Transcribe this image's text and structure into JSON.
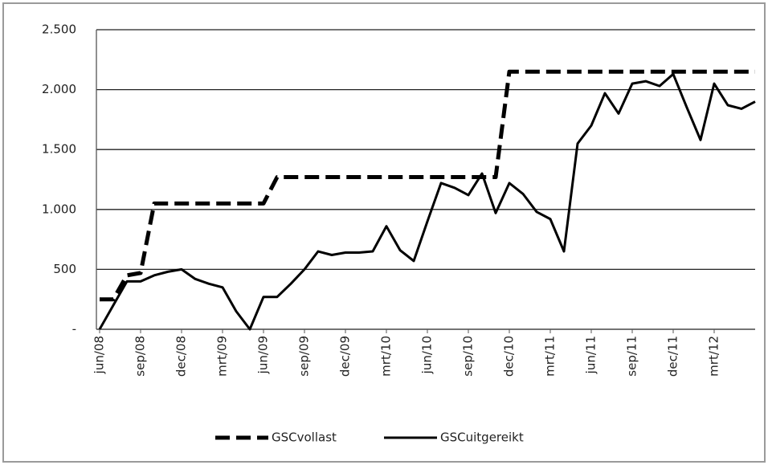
{
  "chart_data": {
    "type": "line",
    "categories": [
      "jun/08",
      null,
      null,
      "sep/08",
      null,
      null,
      "dec/08",
      null,
      null,
      "mrt/09",
      null,
      null,
      "jun/09",
      null,
      null,
      "sep/09",
      null,
      null,
      "dec/09",
      null,
      null,
      "mrt/10",
      null,
      null,
      "jun/10",
      null,
      null,
      "sep/10",
      null,
      null,
      "dec/10",
      null,
      null,
      "mrt/11",
      null,
      null,
      "jun/11",
      null,
      null,
      "sep/11",
      null,
      null,
      "dec/11",
      null,
      null,
      "mrt/12",
      null,
      null,
      null
    ],
    "series": [
      {
        "name": "GSCvollast",
        "color": "#000000",
        "dash": true,
        "values": [
          250,
          250,
          450,
          470,
          1050,
          1050,
          1050,
          1050,
          1050,
          1050,
          1050,
          1050,
          1050,
          1270,
          1270,
          1270,
          1270,
          1270,
          1270,
          1270,
          1270,
          1270,
          1270,
          1270,
          1270,
          1270,
          1270,
          1270,
          1270,
          1270,
          2150,
          2150,
          2150,
          2150,
          2150,
          2150,
          2150,
          2150,
          2150,
          2150,
          2150,
          2150,
          2150,
          2150,
          2150,
          2150,
          2150,
          2150,
          2150
        ]
      },
      {
        "name": "GSCuitgereikt",
        "color": "#000000",
        "dash": false,
        "values": [
          0,
          200,
          400,
          400,
          450,
          480,
          500,
          420,
          380,
          350,
          150,
          0,
          270,
          270,
          380,
          500,
          650,
          620,
          640,
          640,
          650,
          860,
          660,
          570,
          900,
          1220,
          1180,
          1120,
          1300,
          970,
          1220,
          1130,
          980,
          920,
          650,
          1550,
          1700,
          1970,
          1800,
          2050,
          2070,
          2030,
          2130,
          1850,
          1580,
          2050,
          1870,
          1840,
          1900
        ]
      }
    ],
    "ylim": [
      0,
      2500
    ],
    "yticks": [
      {
        "value": 0,
        "label": "-"
      },
      500,
      {
        "value": 1000,
        "label": "1.000"
      },
      {
        "value": 1500,
        "label": "1.500"
      },
      {
        "value": 2000,
        "label": "2.000"
      },
      {
        "value": 2500,
        "label": "2.500"
      }
    ],
    "grid": true,
    "legend": "bottom"
  }
}
